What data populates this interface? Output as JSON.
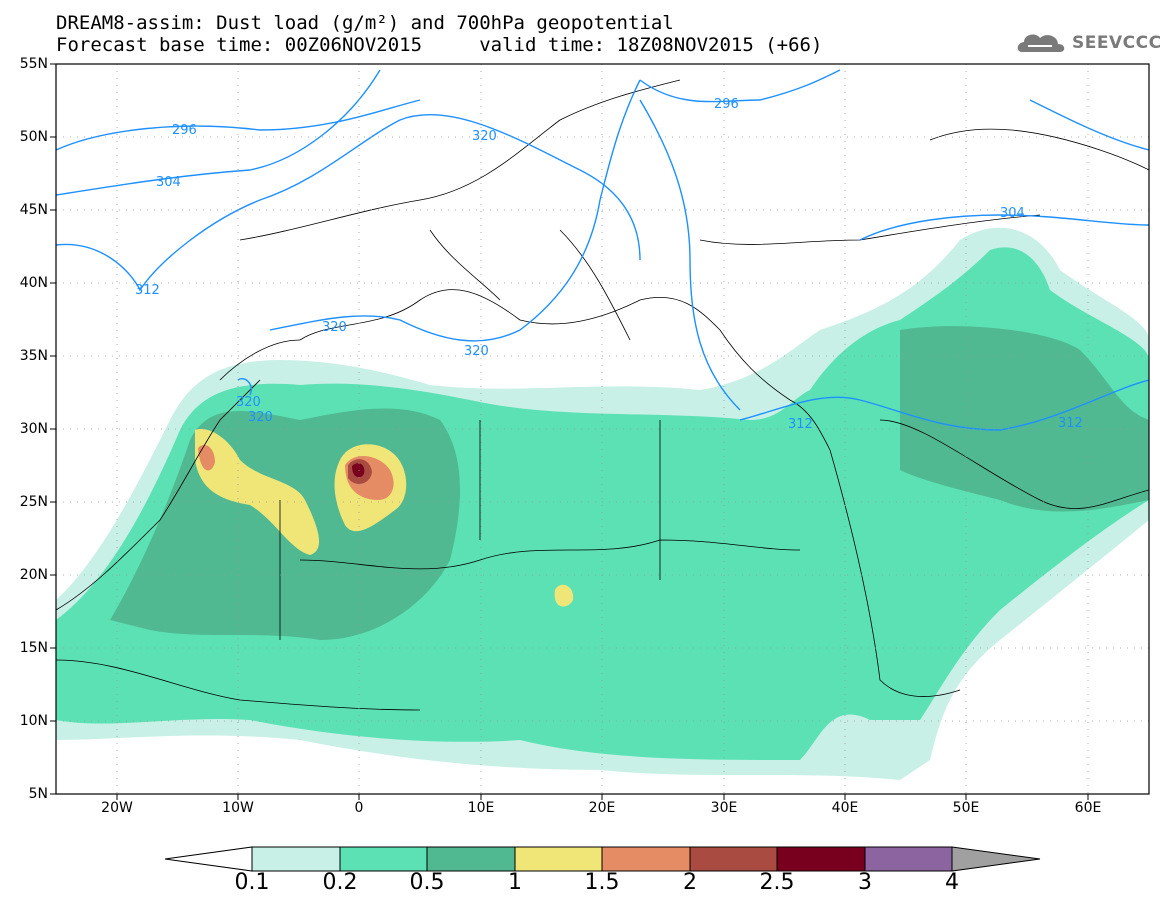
{
  "title_line1": "DREAM8-assim: Dust load (g/m²) and 700hPa geopotential",
  "title_line2": "Forecast base time: 00Z06NOV2015     valid time: 18Z08NOV2015 (+66)",
  "logo_text": "SEEVCCC",
  "lat_labels": [
    "55N",
    "50N",
    "45N",
    "40N",
    "35N",
    "30N",
    "25N",
    "20N",
    "15N",
    "10N",
    "5N"
  ],
  "lon_labels": [
    "20W",
    "10W",
    "0",
    "10E",
    "20E",
    "30E",
    "40E",
    "50E",
    "60E"
  ],
  "contour_labels": [
    "296",
    "296",
    "304",
    "304",
    "312",
    "312",
    "312",
    "320",
    "320",
    "320",
    "320",
    "320"
  ],
  "colorbar": {
    "labels": [
      "0.1",
      "0.2",
      "0.5",
      "1",
      "1.5",
      "2",
      "2.5",
      "3",
      "4"
    ],
    "colors": [
      "#c8f0e6",
      "#5ce1b4",
      "#50b991",
      "#f0e678",
      "#e68c64",
      "#aa4b41",
      "#78001e",
      "#8c64a0",
      "#a0a0a0"
    ]
  },
  "colors": {
    "contour": "#1e90ff",
    "dust_0_1": "#c8f0e6",
    "dust_0_2": "#5ce1b4",
    "dust_0_5": "#50b991",
    "dust_1": "#f0e678",
    "dust_1_5": "#e68c64",
    "dust_2": "#aa4b41",
    "dust_2_5": "#78001e"
  }
}
